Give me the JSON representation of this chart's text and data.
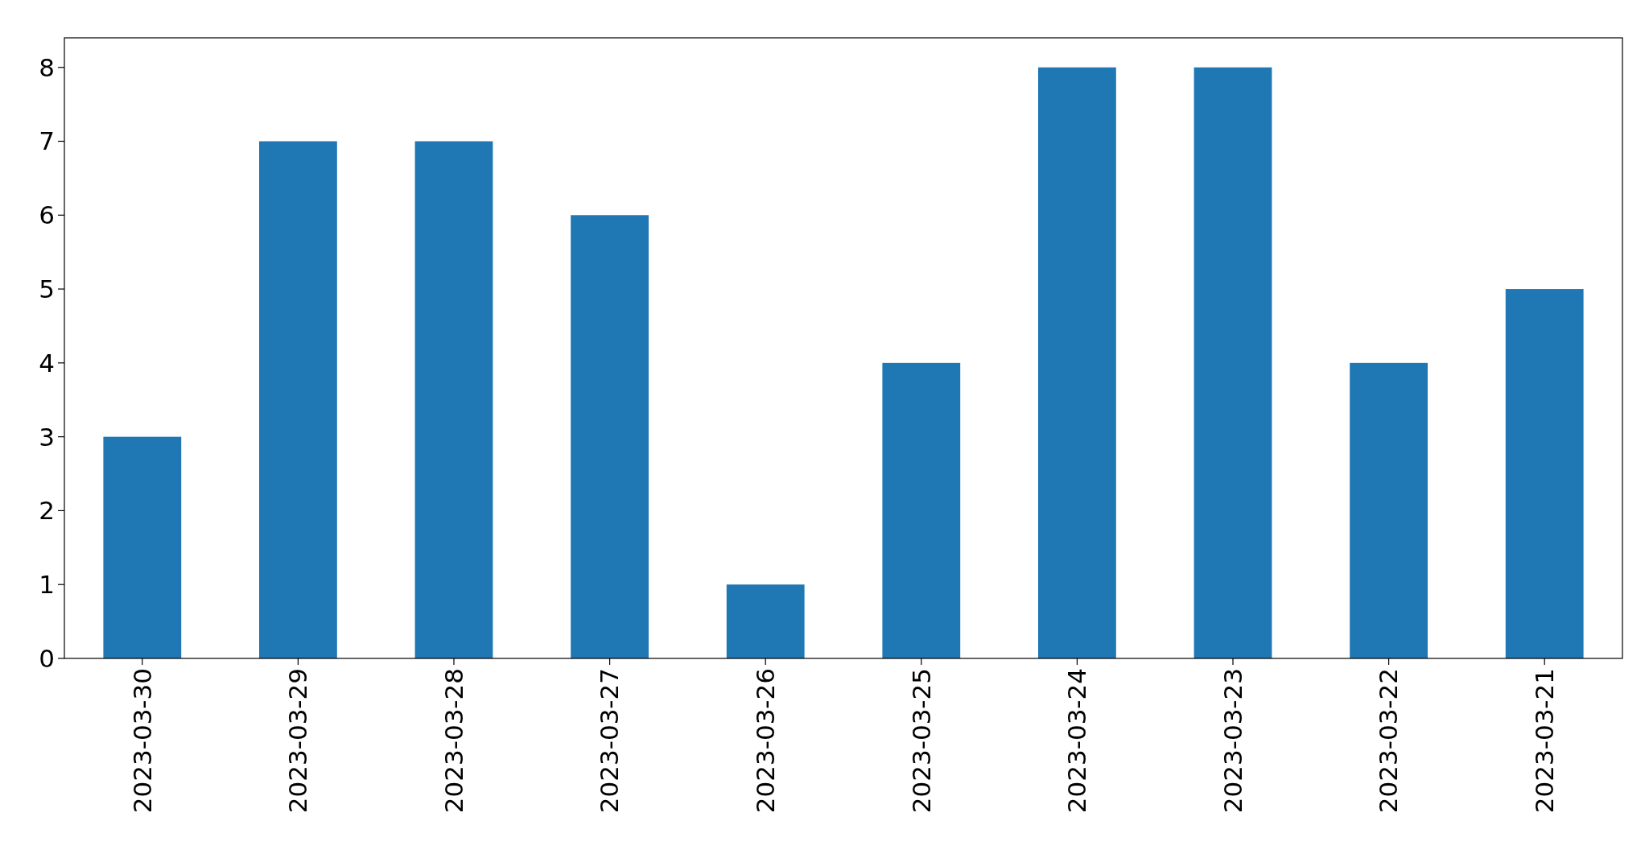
{
  "chart_data": {
    "type": "bar",
    "categories": [
      "2023-03-30",
      "2023-03-29",
      "2023-03-28",
      "2023-03-27",
      "2023-03-26",
      "2023-03-25",
      "2023-03-24",
      "2023-03-23",
      "2023-03-22",
      "2023-03-21"
    ],
    "values": [
      3,
      7,
      7,
      6,
      1,
      4,
      8,
      8,
      4,
      5
    ],
    "color": "#1f77b4",
    "ylim": [
      0,
      8.4
    ],
    "yticks": [
      0,
      1,
      2,
      3,
      4,
      5,
      6,
      7,
      8
    ],
    "grid": false
  }
}
